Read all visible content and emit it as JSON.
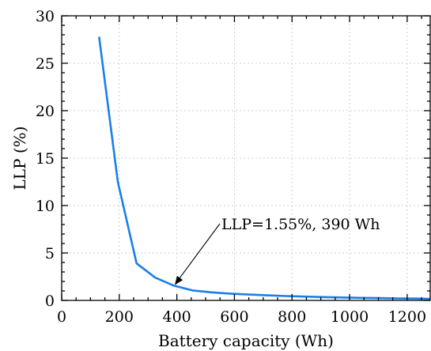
{
  "chart_data": {
    "type": "line",
    "xlabel": "Battery capacity (Wh)",
    "ylabel": "LLP (%)",
    "xlim": [
      0,
      1280
    ],
    "ylim": [
      0,
      30
    ],
    "x_ticks": [
      0,
      200,
      400,
      600,
      800,
      1000,
      1200
    ],
    "x_tick_labels": [
      "0",
      "200",
      "400",
      "600",
      "800",
      "1000",
      "1200"
    ],
    "y_ticks": [
      0,
      5,
      10,
      15,
      20,
      25,
      30
    ],
    "y_tick_labels": [
      "0",
      "5",
      "10",
      "15",
      "20",
      "25",
      "30"
    ],
    "grid": true,
    "series": [
      {
        "color": "#1a7fe8",
        "x": [
          130,
          195,
          260,
          325,
          390,
          455,
          520,
          585,
          650,
          715,
          780,
          845,
          910,
          975,
          1040,
          1105,
          1170,
          1235,
          1280
        ],
        "y": [
          27.8,
          12.5,
          3.9,
          2.4,
          1.55,
          1.05,
          0.85,
          0.72,
          0.62,
          0.53,
          0.46,
          0.4,
          0.35,
          0.31,
          0.27,
          0.24,
          0.21,
          0.19,
          0.17
        ]
      }
    ],
    "annotation": {
      "text": "LLP=1.55%, 390 Wh",
      "x": 390,
      "y": 1.55
    }
  }
}
